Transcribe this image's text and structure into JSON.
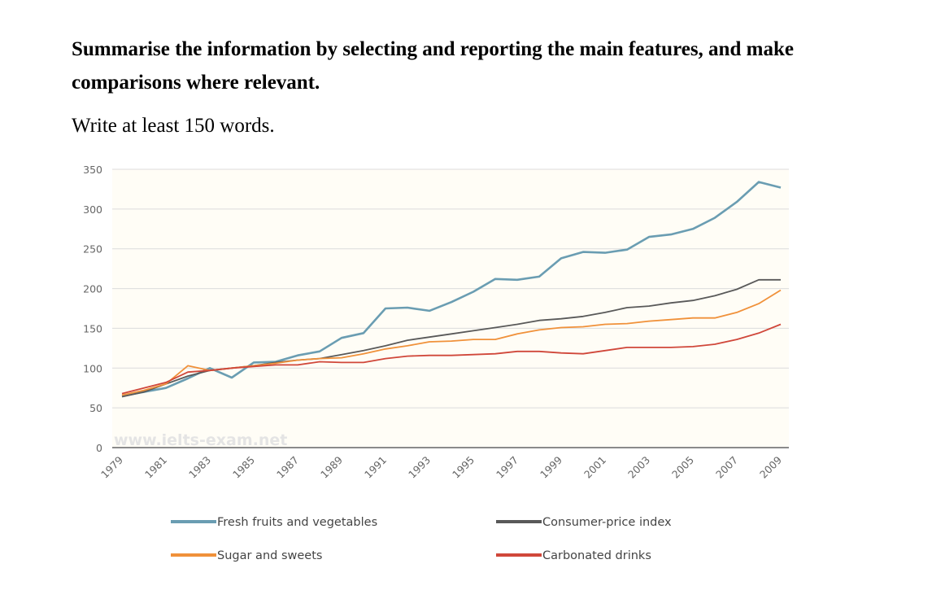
{
  "prompt": {
    "instruction": "Summarise the information by selecting and reporting the main features, and make comparisons where relevant.",
    "word_count": "Write at least 150 words."
  },
  "watermark": "www.ielts-exam.net",
  "chart_data": {
    "type": "line",
    "title": "",
    "xlabel": "",
    "ylabel": "",
    "ylim": [
      0,
      350
    ],
    "yticks": [
      0,
      50,
      100,
      150,
      200,
      250,
      300,
      350
    ],
    "x": [
      1979,
      1980,
      1981,
      1982,
      1983,
      1984,
      1985,
      1986,
      1987,
      1988,
      1989,
      1990,
      1991,
      1992,
      1993,
      1994,
      1995,
      1996,
      1997,
      1998,
      1999,
      2000,
      2001,
      2002,
      2003,
      2004,
      2005,
      2006,
      2007,
      2008,
      2009
    ],
    "xtick_labels": [
      "1979",
      "1981",
      "1983",
      "1985",
      "1987",
      "1989",
      "1991",
      "1993",
      "1995",
      "1997",
      "1999",
      "2001",
      "2003",
      "2005",
      "2007",
      "2009"
    ],
    "grid": true,
    "legend_position": "bottom",
    "series": [
      {
        "name": "Fresh fruits and vegetables",
        "color": "#6a9db2",
        "values": [
          65,
          70,
          75,
          87,
          100,
          88,
          107,
          108,
          116,
          121,
          138,
          144,
          175,
          176,
          172,
          183,
          196,
          212,
          211,
          215,
          238,
          246,
          245,
          249,
          265,
          268,
          275,
          289,
          309,
          334,
          327
        ]
      },
      {
        "name": "Consumer-price index",
        "color": "#595959",
        "values": [
          64,
          70,
          80,
          90,
          97,
          100,
          103,
          107,
          110,
          112,
          117,
          122,
          128,
          135,
          139,
          143,
          147,
          151,
          155,
          160,
          162,
          165,
          170,
          176,
          178,
          182,
          185,
          191,
          199,
          211,
          211
        ]
      },
      {
        "name": "Sugar and sweets",
        "color": "#f0913a",
        "values": [
          66,
          72,
          80,
          103,
          97,
          100,
          103,
          106,
          110,
          112,
          113,
          118,
          124,
          128,
          133,
          134,
          136,
          136,
          143,
          148,
          151,
          152,
          155,
          156,
          159,
          161,
          163,
          163,
          170,
          181,
          198
        ]
      },
      {
        "name": "Carbonated drinks",
        "color": "#d0473a",
        "values": [
          68,
          75,
          82,
          95,
          97,
          100,
          102,
          104,
          104,
          108,
          107,
          107,
          112,
          115,
          116,
          116,
          117,
          118,
          121,
          121,
          119,
          118,
          122,
          126,
          126,
          126,
          127,
          130,
          136,
          144,
          155
        ]
      }
    ]
  }
}
